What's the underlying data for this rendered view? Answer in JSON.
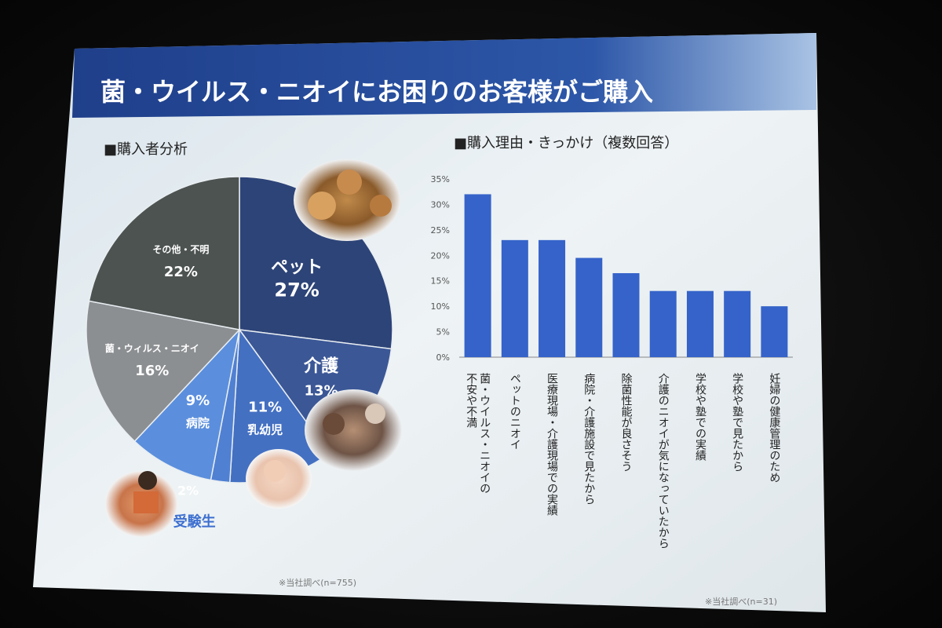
{
  "slide": {
    "title": "菌・ウイルス・ニオイにお困りのお客様がご購入",
    "colors": {
      "title_bar": "#2b4f9e",
      "slide_bg": "#e7eef3",
      "bar": "#3563c9",
      "pie_pet": "#2d4478",
      "pie_kaigo": "#3b5796",
      "pie_nyuyoji": "#4470c2",
      "pie_jukensei": "#5080d2",
      "pie_byoin": "#5b8fdd",
      "pie_kin": "#8c8f92",
      "pie_other": "#4c5350"
    }
  },
  "chart_data": [
    {
      "type": "pie",
      "title": "■購入者分析",
      "footnote": "※当社調べ(n=755)",
      "slices": [
        {
          "name": "ペット",
          "value": 27,
          "label": "27%"
        },
        {
          "name": "介護",
          "value": 13,
          "label": "13%"
        },
        {
          "name": "乳幼児",
          "value": 11,
          "label": "11%"
        },
        {
          "name": "受験生",
          "value": 2,
          "label": "2%"
        },
        {
          "name": "病院",
          "value": 9,
          "label": "9%"
        },
        {
          "name": "菌・ウィルス・ニオイ",
          "value": 16,
          "label": "16%"
        },
        {
          "name": "その他・不明",
          "value": 22,
          "label": "22%"
        }
      ],
      "image_icons": [
        "dogs-photo",
        "elderly-care-photo",
        "baby-photo",
        "student-photo"
      ]
    },
    {
      "type": "bar",
      "title": "■購入理由・きっかけ（複数回答）",
      "footnote": "※当社調べ(n=31)",
      "ylim": [
        0,
        35
      ],
      "yticks": [
        "0%",
        "5%",
        "10%",
        "15%",
        "20%",
        "25%",
        "30%",
        "35%"
      ],
      "categories": [
        "菌・ウイルス・ニオイの不安や不満",
        "ペットのニオイ",
        "医療現場・介護現場での実績",
        "病院・介護施設で見たから",
        "除菌性能が良さそう",
        "介護のニオイが気になっていたから",
        "学校や塾での実績",
        "学校や塾で見たから",
        "妊婦の健康管理のため"
      ],
      "values": [
        32,
        23,
        23,
        19.5,
        16.5,
        13,
        13,
        13,
        10
      ]
    }
  ]
}
